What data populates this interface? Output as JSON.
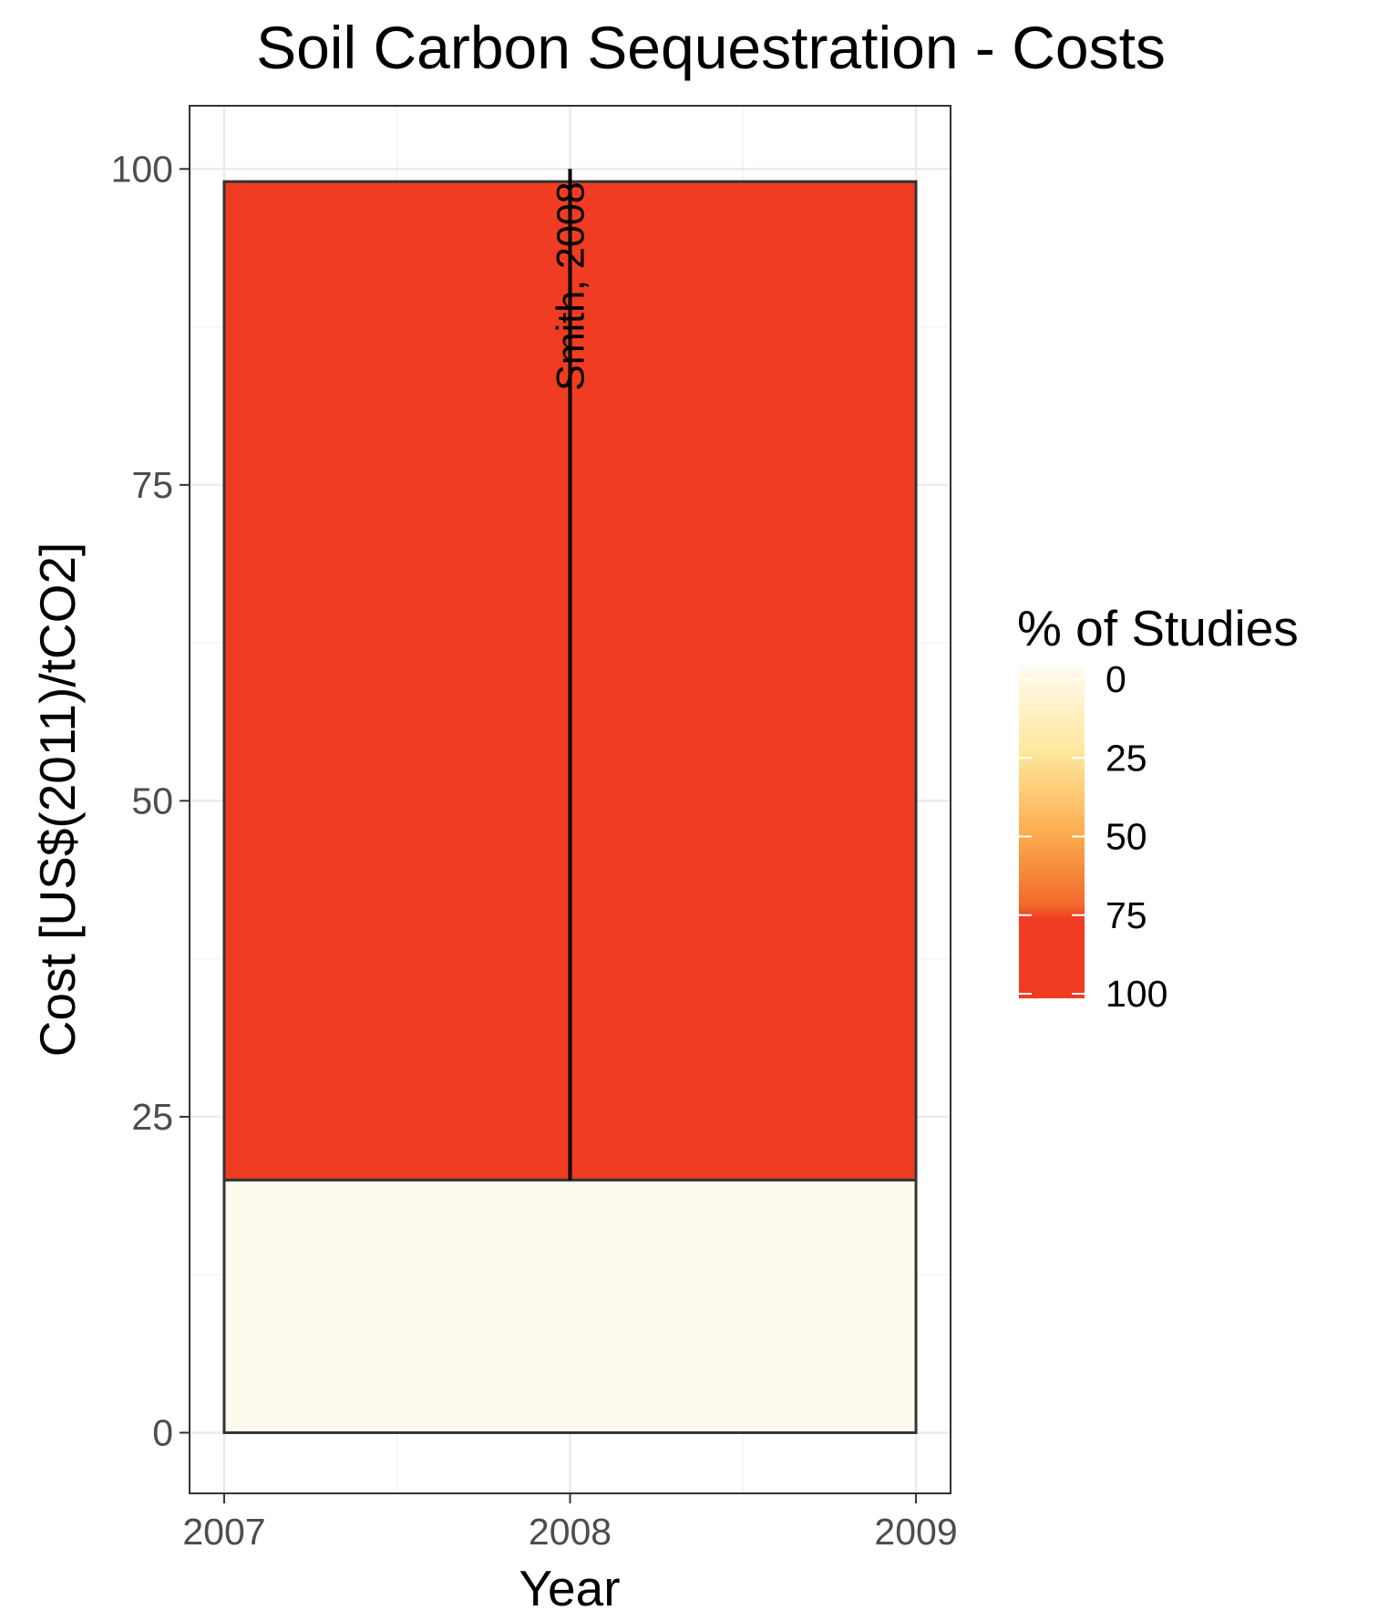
{
  "chart_data": {
    "type": "heatmap",
    "title": "Soil Carbon Sequestration - Costs",
    "xlabel": "Year",
    "ylabel": "Cost [US$(2011)/tCO2]",
    "xlim": [
      2006.9,
      2009.1
    ],
    "ylim": [
      -4.8,
      105
    ],
    "x_ticks": [
      "2007",
      "2008",
      "2009"
    ],
    "y_ticks": [
      "0",
      "25",
      "50",
      "75",
      "100"
    ],
    "grid": true,
    "tiles": [
      {
        "x": [
          2007,
          2009
        ],
        "y": [
          0,
          20
        ],
        "pct": 0
      },
      {
        "x": [
          2007,
          2009
        ],
        "y": [
          20,
          99
        ],
        "pct": 100
      }
    ],
    "studies": [
      {
        "label": "Smith, 2008",
        "x": 2008,
        "low": 20,
        "high": 100
      }
    ],
    "legend": {
      "title": "% of Studies",
      "position": "right",
      "breaks": [
        "0",
        "25",
        "50",
        "75",
        "100"
      ],
      "colors": [
        "#fffbf0",
        "#fee9a0",
        "#fdae4f",
        "#f16a2b",
        "#f03c22"
      ]
    },
    "colors": {
      "tile_low": "#fff9ee",
      "tile_high": "#ef3c22",
      "border": "#333333",
      "grid_major": "#ebebeb",
      "grid_minor": "#f4f4f4"
    }
  }
}
